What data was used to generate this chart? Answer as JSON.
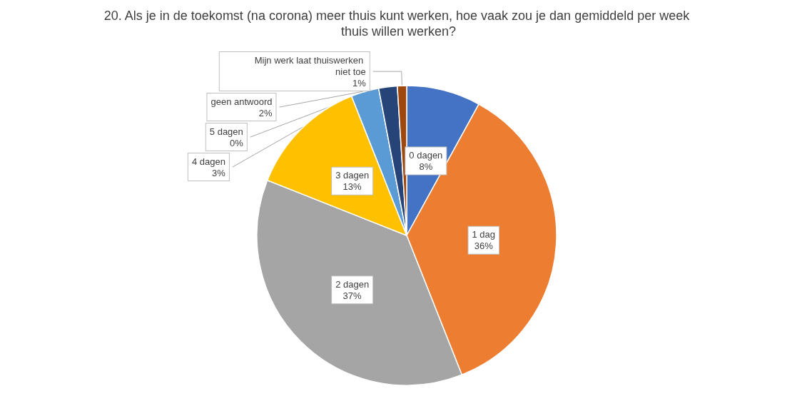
{
  "chart_data": {
    "type": "pie",
    "title": "20. Als je in de toekomst (na corona) meer thuis kunt werken, hoe vaak zou je dan gemiddeld per week thuis willen werken?",
    "categories": [
      "0 dagen",
      "1 dag",
      "2 dagen",
      "3 dagen",
      "4 dagen",
      "5 dagen",
      "geen antwoord",
      "Mijn werk laat thuiswerken niet toe"
    ],
    "values": [
      8,
      36,
      37,
      13,
      3,
      0,
      2,
      1
    ],
    "value_labels": [
      "8%",
      "36%",
      "37%",
      "13%",
      "3%",
      "0%",
      "2%",
      "1%"
    ],
    "colors": [
      "#4472c4",
      "#ed7d31",
      "#a5a5a5",
      "#ffc000",
      "#5b9bd5",
      "#70ad47",
      "#264478",
      "#9e480e"
    ],
    "legend": false
  }
}
